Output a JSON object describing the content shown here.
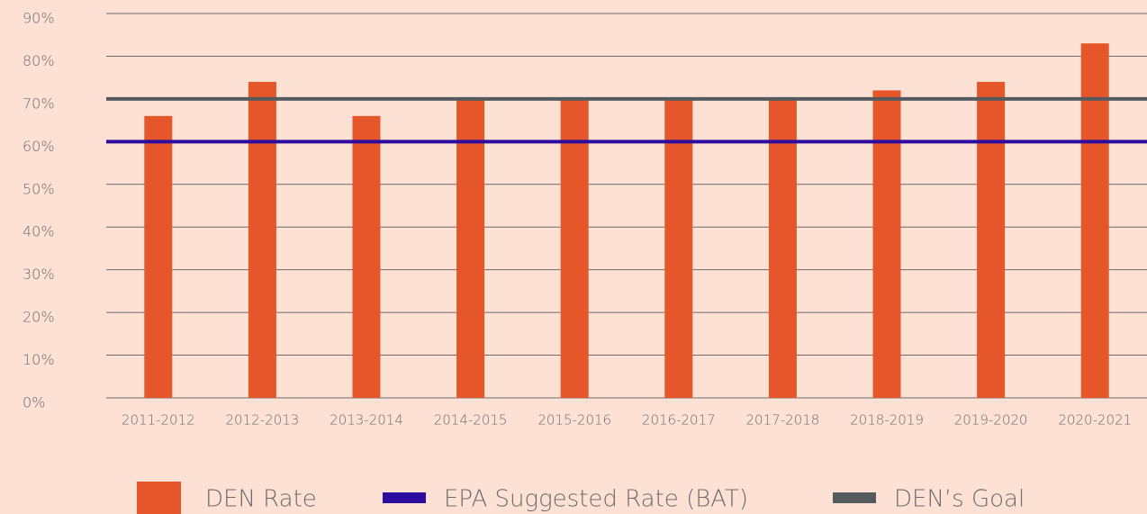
{
  "chart_data": {
    "type": "bar",
    "categories": [
      "2011-2012",
      "2012-2013",
      "2013-2014",
      "2014-2015",
      "2015-2016",
      "2016-2017",
      "2017-2018",
      "2018-2019",
      "2019-2020",
      "2020-2021"
    ],
    "series": [
      {
        "name": "DEN Rate",
        "color": "#e5572a",
        "values": [
          66,
          74,
          66,
          70,
          70,
          70,
          70,
          72,
          74,
          83
        ]
      }
    ],
    "reference_lines": [
      {
        "name": "EPA Suggested Rate (BAT)",
        "color": "#2b0c9e",
        "value": 60
      },
      {
        "name": "DEN’s Goal",
        "color": "#555a5e",
        "value": 70
      }
    ],
    "ylim": [
      0,
      90
    ],
    "yticks": [
      {
        "value": 0,
        "label": "0%"
      },
      {
        "value": 10,
        "label": "10%"
      },
      {
        "value": 20,
        "label": "20%"
      },
      {
        "value": 30,
        "label": "30%"
      },
      {
        "value": 40,
        "label": "40%"
      },
      {
        "value": 50,
        "label": "50%"
      },
      {
        "value": 60,
        "label": "60%"
      },
      {
        "value": 70,
        "label": "70%"
      },
      {
        "value": 80,
        "label": "80%"
      },
      {
        "value": 90,
        "label": "90%"
      }
    ],
    "grid": true
  }
}
